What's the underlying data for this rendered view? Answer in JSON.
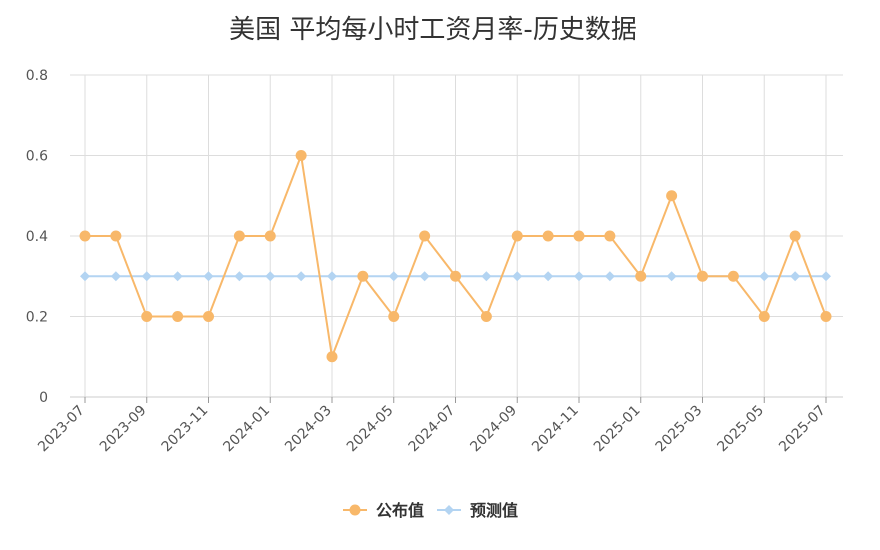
{
  "chart_data": {
    "type": "line",
    "title": "美国 平均每小时工资月率-历史数据",
    "categories": [
      "2023-07",
      "2023-08",
      "2023-09",
      "2023-10",
      "2023-11",
      "2023-12",
      "2024-01",
      "2024-02",
      "2024-03",
      "2024-04",
      "2024-05",
      "2024-06",
      "2024-07",
      "2024-08",
      "2024-09",
      "2024-10",
      "2024-11",
      "2024-12",
      "2025-01",
      "2025-02",
      "2025-03",
      "2025-04",
      "2025-05",
      "2025-06",
      "2025-07"
    ],
    "x_tick_labels": [
      "2023-07",
      "2023-09",
      "2023-11",
      "2024-01",
      "2024-03",
      "2024-05",
      "2024-07",
      "2024-09",
      "2024-11",
      "2025-01",
      "2025-03",
      "2025-05",
      "2025-07"
    ],
    "y_tick_labels": [
      "0",
      "0.2",
      "0.4",
      "0.6",
      "0.8"
    ],
    "ylim": [
      0,
      0.8
    ],
    "grid": true,
    "legend_position": "bottom",
    "series": [
      {
        "name": "公布值",
        "color": "#f8b86a",
        "marker": "circle",
        "values": [
          0.4,
          0.4,
          0.2,
          0.2,
          0.2,
          0.4,
          0.4,
          0.6,
          0.1,
          0.3,
          0.2,
          0.4,
          0.3,
          0.2,
          0.4,
          0.4,
          0.4,
          0.4,
          0.3,
          0.5,
          0.3,
          0.3,
          0.2,
          0.4,
          0.2
        ]
      },
      {
        "name": "预测值",
        "color": "#b3d4f2",
        "marker": "diamond",
        "values": [
          0.3,
          0.3,
          0.3,
          0.3,
          0.3,
          0.3,
          0.3,
          0.3,
          0.3,
          0.3,
          0.3,
          0.3,
          0.3,
          0.3,
          0.3,
          0.3,
          0.3,
          0.3,
          0.3,
          0.3,
          0.3,
          0.3,
          0.3,
          0.3,
          0.3
        ]
      }
    ]
  }
}
